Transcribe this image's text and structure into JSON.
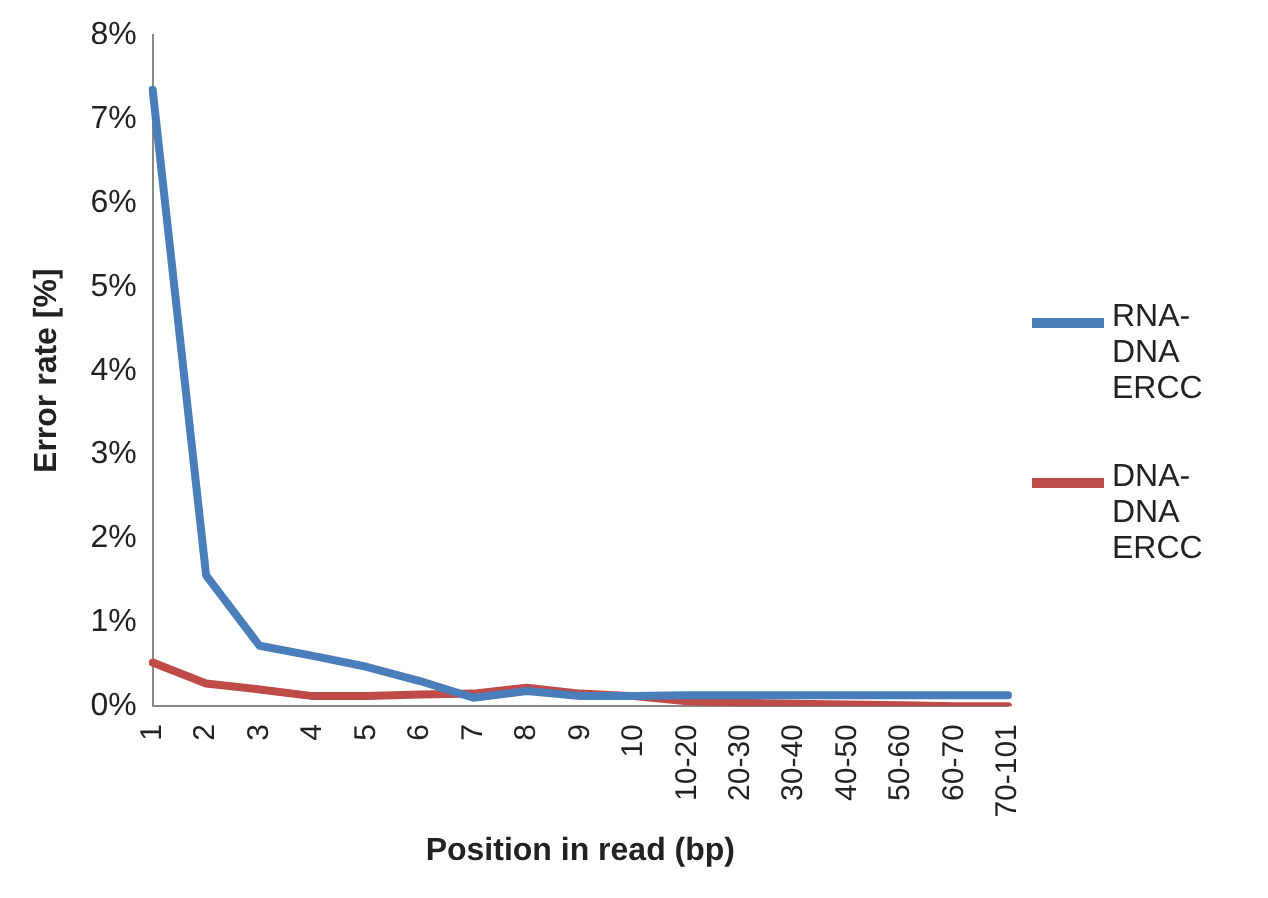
{
  "chart_data": {
    "type": "line",
    "xlabel": "Position in read (bp)",
    "ylabel": "Error rate [%]",
    "categories": [
      "1",
      "2",
      "3",
      "4",
      "5",
      "6",
      "7",
      "8",
      "9",
      "10",
      "10-20",
      "20-30",
      "30-40",
      "40-50",
      "50-60",
      "60-70",
      "70-101"
    ],
    "series": [
      {
        "name": "RNA-DNA ERCC",
        "color": "#4a7ebb",
        "values": [
          7.35,
          1.56,
          0.72,
          0.6,
          0.47,
          0.3,
          0.1,
          0.18,
          0.12,
          0.12,
          0.13,
          0.13,
          0.13,
          0.13,
          0.13,
          0.13,
          0.13
        ]
      },
      {
        "name": "DNA-DNA ERCC",
        "color": "#be4b48",
        "values": [
          0.52,
          0.27,
          0.2,
          0.12,
          0.12,
          0.14,
          0.15,
          0.22,
          0.15,
          0.12,
          0.06,
          0.04,
          0.03,
          0.02,
          0.01,
          0.0,
          0.0
        ]
      }
    ],
    "ylim": [
      0,
      8
    ],
    "yticks": [
      {
        "value": 0,
        "label": "0%"
      },
      {
        "value": 1,
        "label": "1%"
      },
      {
        "value": 2,
        "label": "2%"
      },
      {
        "value": 3,
        "label": "3%"
      },
      {
        "value": 4,
        "label": "4%"
      },
      {
        "value": 5,
        "label": "5%"
      },
      {
        "value": 6,
        "label": "6%"
      },
      {
        "value": 7,
        "label": "7%"
      },
      {
        "value": 8,
        "label": "8%"
      }
    ],
    "grid": false,
    "legend": "right",
    "marker": "none",
    "line_style": "solid"
  }
}
